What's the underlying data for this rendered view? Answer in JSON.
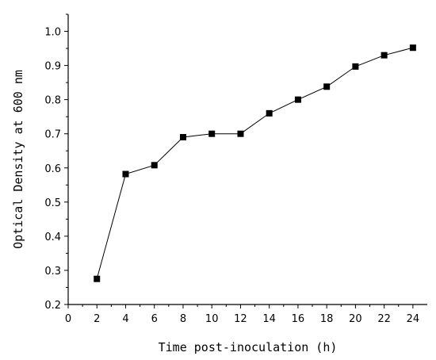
{
  "chart_data": {
    "type": "line",
    "title": "",
    "xlabel": "Time post-inoculation (h)",
    "ylabel": "Optical Density at 600 nm",
    "xlim": [
      0,
      25
    ],
    "ylim": [
      0.2,
      1.05
    ],
    "xticks": [
      0,
      2,
      4,
      6,
      8,
      10,
      12,
      14,
      16,
      18,
      20,
      22,
      24
    ],
    "xtick_labels": [
      "0",
      "2",
      "4",
      "6",
      "8",
      "10",
      "12",
      "14",
      "16",
      "18",
      "20",
      "22",
      "24"
    ],
    "yticks": [
      0.2,
      0.3,
      0.4,
      0.5,
      0.6,
      0.7,
      0.8,
      0.9,
      1.0
    ],
    "ytick_labels": [
      "0.2",
      "0.3",
      "0.4",
      "0.5",
      "0.6",
      "0.7",
      "0.8",
      "0.9",
      "1.0"
    ],
    "grid": false,
    "legend": "none",
    "marker": "square",
    "color": "#000000",
    "series": [
      {
        "x": [
          2,
          4,
          6,
          8,
          10,
          12,
          14,
          16,
          18,
          20,
          22,
          24
        ],
        "y": [
          0.275,
          0.582,
          0.608,
          0.69,
          0.7,
          0.7,
          0.76,
          0.8,
          0.838,
          0.897,
          0.93,
          0.952
        ]
      }
    ]
  }
}
